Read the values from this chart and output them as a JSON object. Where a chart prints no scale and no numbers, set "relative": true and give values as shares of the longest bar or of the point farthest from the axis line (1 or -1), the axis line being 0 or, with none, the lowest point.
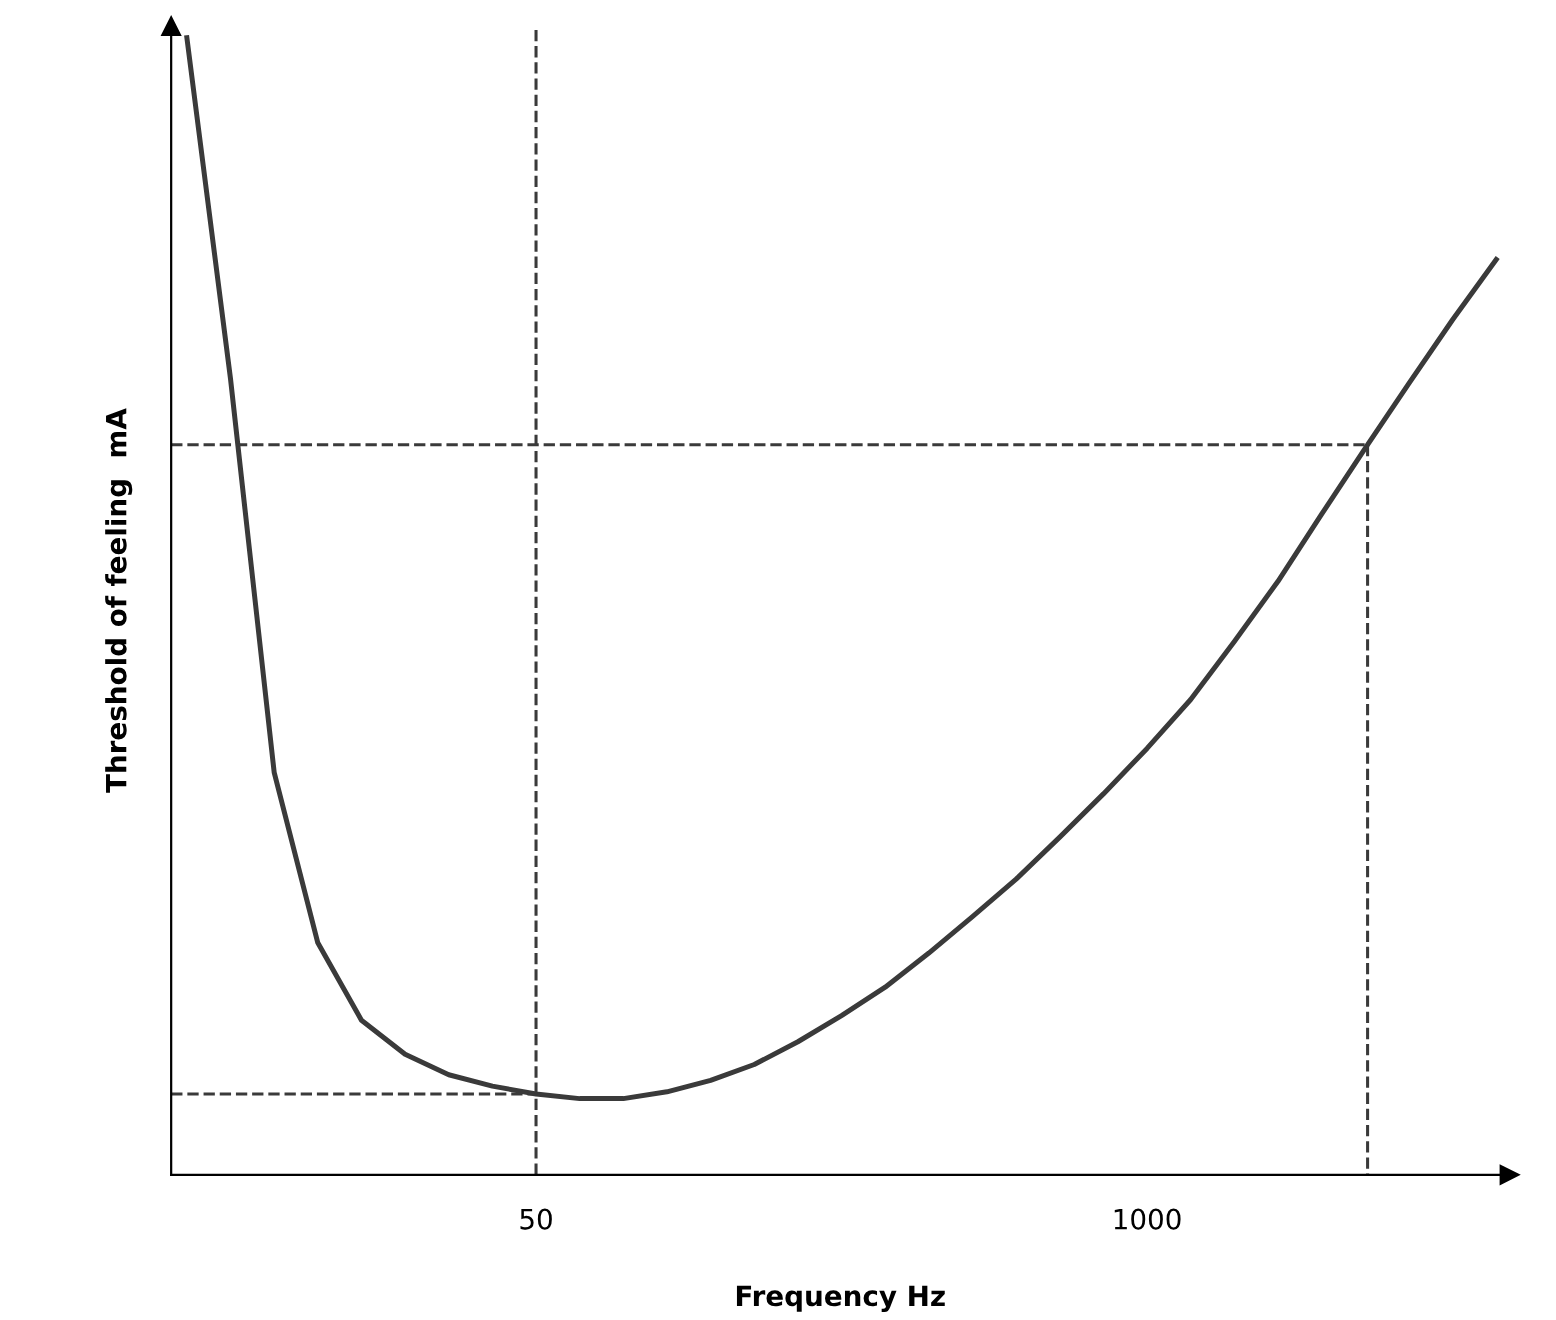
{
  "chart_data": {
    "type": "line",
    "relative": true,
    "xlabel": "Frequency Hz",
    "ylabel": "Threshold of feeling  mA",
    "categories": [
      null,
      null,
      null,
      null,
      null,
      null,
      null,
      null,
      "50",
      null,
      null,
      null,
      null,
      null,
      null,
      null,
      null,
      null,
      null,
      null,
      null,
      null,
      "1000",
      null,
      null,
      null,
      null,
      null,
      null,
      null,
      null
    ],
    "series": [
      {
        "color": "#3a3a3a",
        "values": [
          1.0,
          0.7,
          0.354,
          0.204,
          0.136,
          0.106,
          0.088,
          0.078,
          0.071,
          0.067,
          0.067,
          0.073,
          0.083,
          0.097,
          0.117,
          0.14,
          0.165,
          0.195,
          0.227,
          0.26,
          0.297,
          0.335,
          0.375,
          0.418,
          0.469,
          0.522,
          0.581,
          0.639,
          0.696,
          0.752,
          0.805
        ]
      }
    ],
    "ref_lines": [
      {
        "axis": "y",
        "value": 0.642,
        "color": "#3a3a3a",
        "line_style": "dashed"
      },
      {
        "axis": "y",
        "value": 0.071,
        "color": "#3a3a3a",
        "line_style": "dashed"
      },
      {
        "axis": "x",
        "value": "50",
        "color": "#3a3a3a",
        "line_style": "dashed"
      }
    ],
    "grid": false,
    "legend": false,
    "marker": "none",
    "line_style": "solid"
  }
}
